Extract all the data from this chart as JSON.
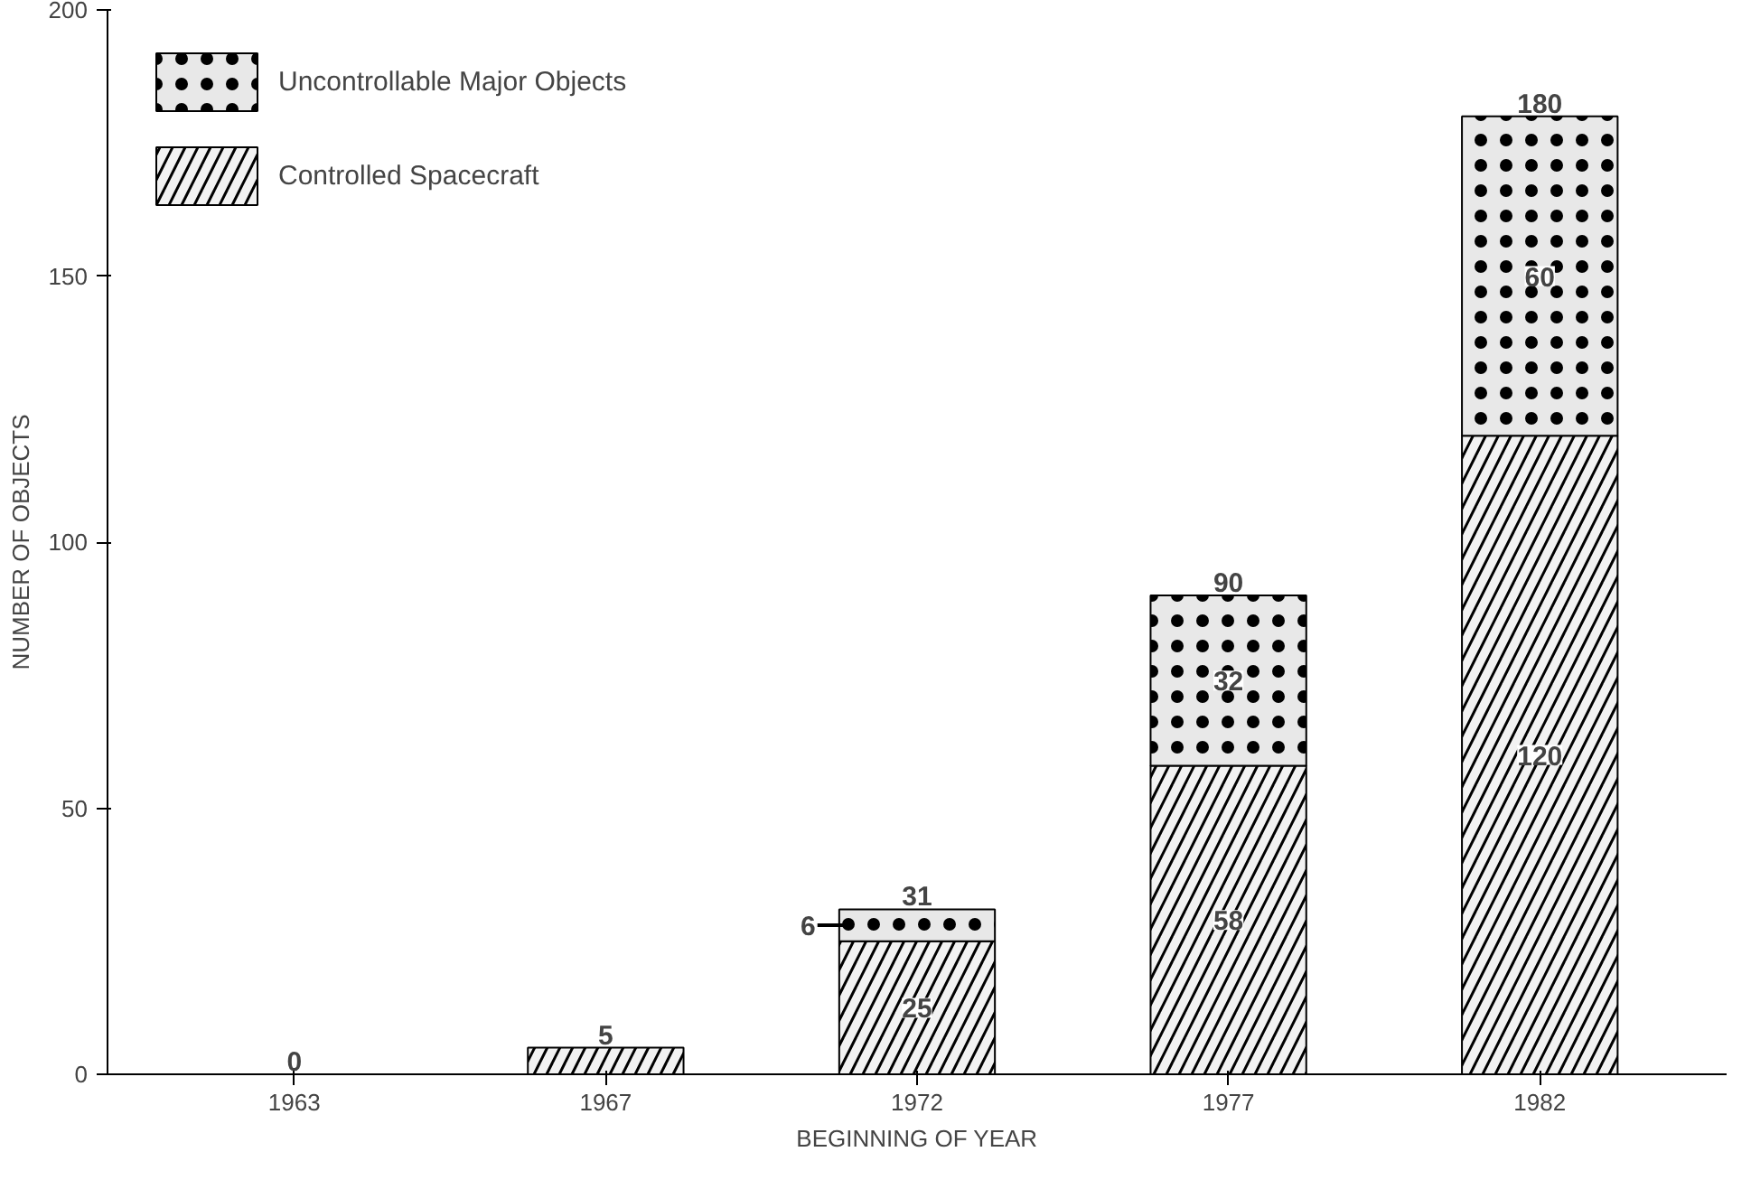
{
  "chart_data": {
    "type": "bar",
    "stacked": true,
    "xlabel": "BEGINNING OF YEAR",
    "ylabel": "NUMBER OF OBJECTS",
    "categories": [
      "1963",
      "1967",
      "1972",
      "1977",
      "1982"
    ],
    "series": [
      {
        "name": "Controlled Spacecraft",
        "color": "#f2f2f2",
        "values": [
          0,
          5,
          25,
          58,
          120
        ],
        "value_labels": [
          null,
          null,
          "25",
          "58",
          "120"
        ]
      },
      {
        "name": "Uncontrollable Major Objects",
        "color": "#e8e8e8",
        "values": [
          0,
          0,
          6,
          32,
          60
        ],
        "value_labels": [
          null,
          null,
          "6",
          "32",
          "60"
        ]
      }
    ],
    "totals": [
      "0",
      "5",
      "31",
      "90",
      "180"
    ],
    "ylim": [
      0,
      200
    ],
    "yticks": [
      0,
      50,
      100,
      150,
      200
    ],
    "grid": false,
    "legend": "top left"
  }
}
